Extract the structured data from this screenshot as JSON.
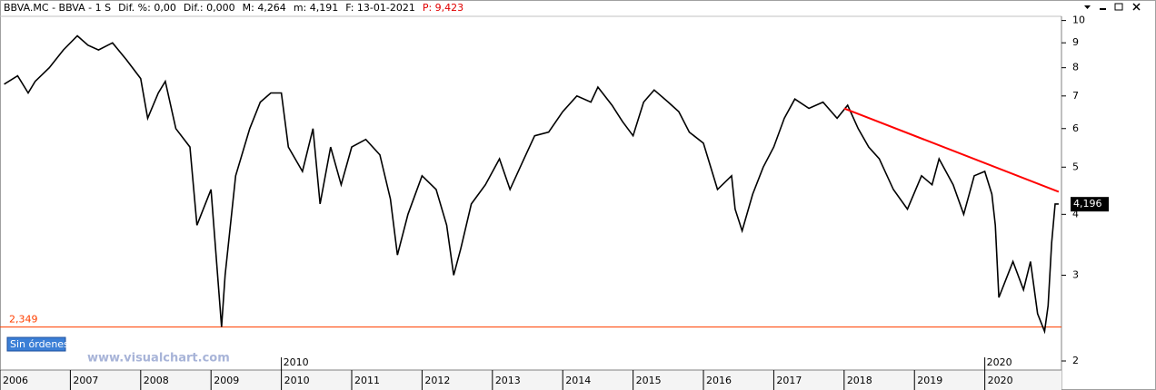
{
  "chart_data": {
    "type": "line",
    "header": [
      "BBVA.MC - BBVA -  1 S",
      "Dif. %: 0,00",
      "Dif.: 0,000",
      "M: 4,264",
      "m: 4,191",
      "F: 13-01-2021",
      "P: 9,423"
    ],
    "x": [
      2006.06,
      2006.25,
      2006.4,
      2006.5,
      2006.7,
      2006.9,
      2007.1,
      2007.25,
      2007.4,
      2007.6,
      2007.8,
      2008.0,
      2008.1,
      2008.25,
      2008.35,
      2008.5,
      2008.7,
      2008.8,
      2009.0,
      2009.15,
      2009.2,
      2009.35,
      2009.55,
      2009.7,
      2009.85,
      2010.0,
      2010.1,
      2010.3,
      2010.45,
      2010.55,
      2010.7,
      2010.85,
      2011.0,
      2011.2,
      2011.4,
      2011.55,
      2011.65,
      2011.8,
      2012.0,
      2012.2,
      2012.35,
      2012.45,
      2012.55,
      2012.7,
      2012.9,
      2013.1,
      2013.25,
      2013.45,
      2013.6,
      2013.8,
      2014.0,
      2014.2,
      2014.4,
      2014.5,
      2014.7,
      2014.85,
      2015.0,
      2015.15,
      2015.3,
      2015.5,
      2015.65,
      2015.8,
      2016.0,
      2016.2,
      2016.4,
      2016.45,
      2016.55,
      2016.7,
      2016.85,
      2017.0,
      2017.15,
      2017.3,
      2017.5,
      2017.7,
      2017.9,
      2018.05,
      2018.2,
      2018.35,
      2018.5,
      2018.7,
      2018.9,
      2019.1,
      2019.25,
      2019.35,
      2019.55,
      2019.7,
      2019.85,
      2020.0,
      2020.1,
      2020.15,
      2020.2,
      2020.4,
      2020.55,
      2020.65,
      2020.75,
      2020.85,
      2020.9,
      2020.95,
      2021.0,
      2021.05
    ],
    "values": [
      7.4,
      7.7,
      7.1,
      7.5,
      8.0,
      8.7,
      9.3,
      8.9,
      8.7,
      9.0,
      8.3,
      7.6,
      6.3,
      7.1,
      7.5,
      6.0,
      5.5,
      3.8,
      4.5,
      2.35,
      3.0,
      4.8,
      6.0,
      6.8,
      7.1,
      7.1,
      5.5,
      4.9,
      6.0,
      4.2,
      5.5,
      4.6,
      5.5,
      5.7,
      5.3,
      4.3,
      3.3,
      4.0,
      4.8,
      4.5,
      3.8,
      3.0,
      3.4,
      4.2,
      4.6,
      5.2,
      4.5,
      5.2,
      5.8,
      5.9,
      6.5,
      7.0,
      6.8,
      7.3,
      6.7,
      6.2,
      5.8,
      6.8,
      7.2,
      6.8,
      6.5,
      5.9,
      5.6,
      4.5,
      4.8,
      4.1,
      3.7,
      4.4,
      5.0,
      5.5,
      6.3,
      6.9,
      6.6,
      6.8,
      6.3,
      6.7,
      6.0,
      5.5,
      5.2,
      4.5,
      4.1,
      4.8,
      4.6,
      5.2,
      4.6,
      4.0,
      4.8,
      4.9,
      4.4,
      3.8,
      2.7,
      3.2,
      2.8,
      3.2,
      2.5,
      2.3,
      2.6,
      3.5,
      4.2,
      4.2
    ],
    "color": "#000000",
    "log_scale": true,
    "xlim": [
      2006,
      2021.09
    ],
    "xticks": [
      2006,
      2007,
      2008,
      2009,
      2010,
      2011,
      2012,
      2013,
      2014,
      2015,
      2016,
      2017,
      2018,
      2019,
      2020
    ],
    "decade_labels": [
      2010,
      2020
    ],
    "ylim": [
      1.916,
      10.2
    ],
    "yticks": [
      2,
      3,
      4,
      5,
      6,
      7,
      8,
      9,
      10
    ],
    "support": {
      "value": 2.349,
      "label": "2,349"
    },
    "trendline": {
      "x": [
        2018.0,
        2021.05
      ],
      "values": [
        6.6,
        4.45
      ],
      "color": "#ff0000"
    },
    "last_price": {
      "value": 4.196,
      "label": "4,196"
    },
    "button": "Sin órdenes",
    "watermark": "www.visualchart.com"
  }
}
